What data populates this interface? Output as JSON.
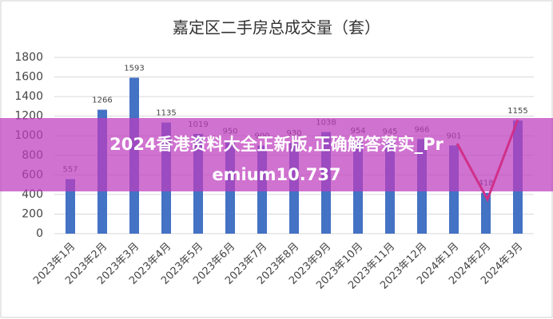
{
  "chart_data": {
    "type": "bar",
    "title": "嘉定区二手房总成交量（套）",
    "categories": [
      "2023年1月",
      "2023年2月",
      "2023年3月",
      "2023年4月",
      "2023年5月",
      "2023年6月",
      "2023年7月",
      "2023年8月",
      "2023年9月",
      "2023年10月",
      "2023年11月",
      "2023年12月",
      "2024年1月",
      "2024年2月",
      "2024年3月"
    ],
    "values": [
      557,
      1266,
      1593,
      1135,
      1019,
      950,
      900,
      930,
      1038,
      954,
      945,
      966,
      901,
      418,
      1155
    ],
    "color": "#4472c4",
    "ylim": [
      0,
      1800
    ],
    "yticks": [
      0,
      200,
      400,
      600,
      800,
      1000,
      1200,
      1400,
      1600,
      1800
    ],
    "grid": true
  },
  "banner_text": [
    "2024香港资料大全正新版,正确解答落实_Pr",
    "emium10.737"
  ]
}
